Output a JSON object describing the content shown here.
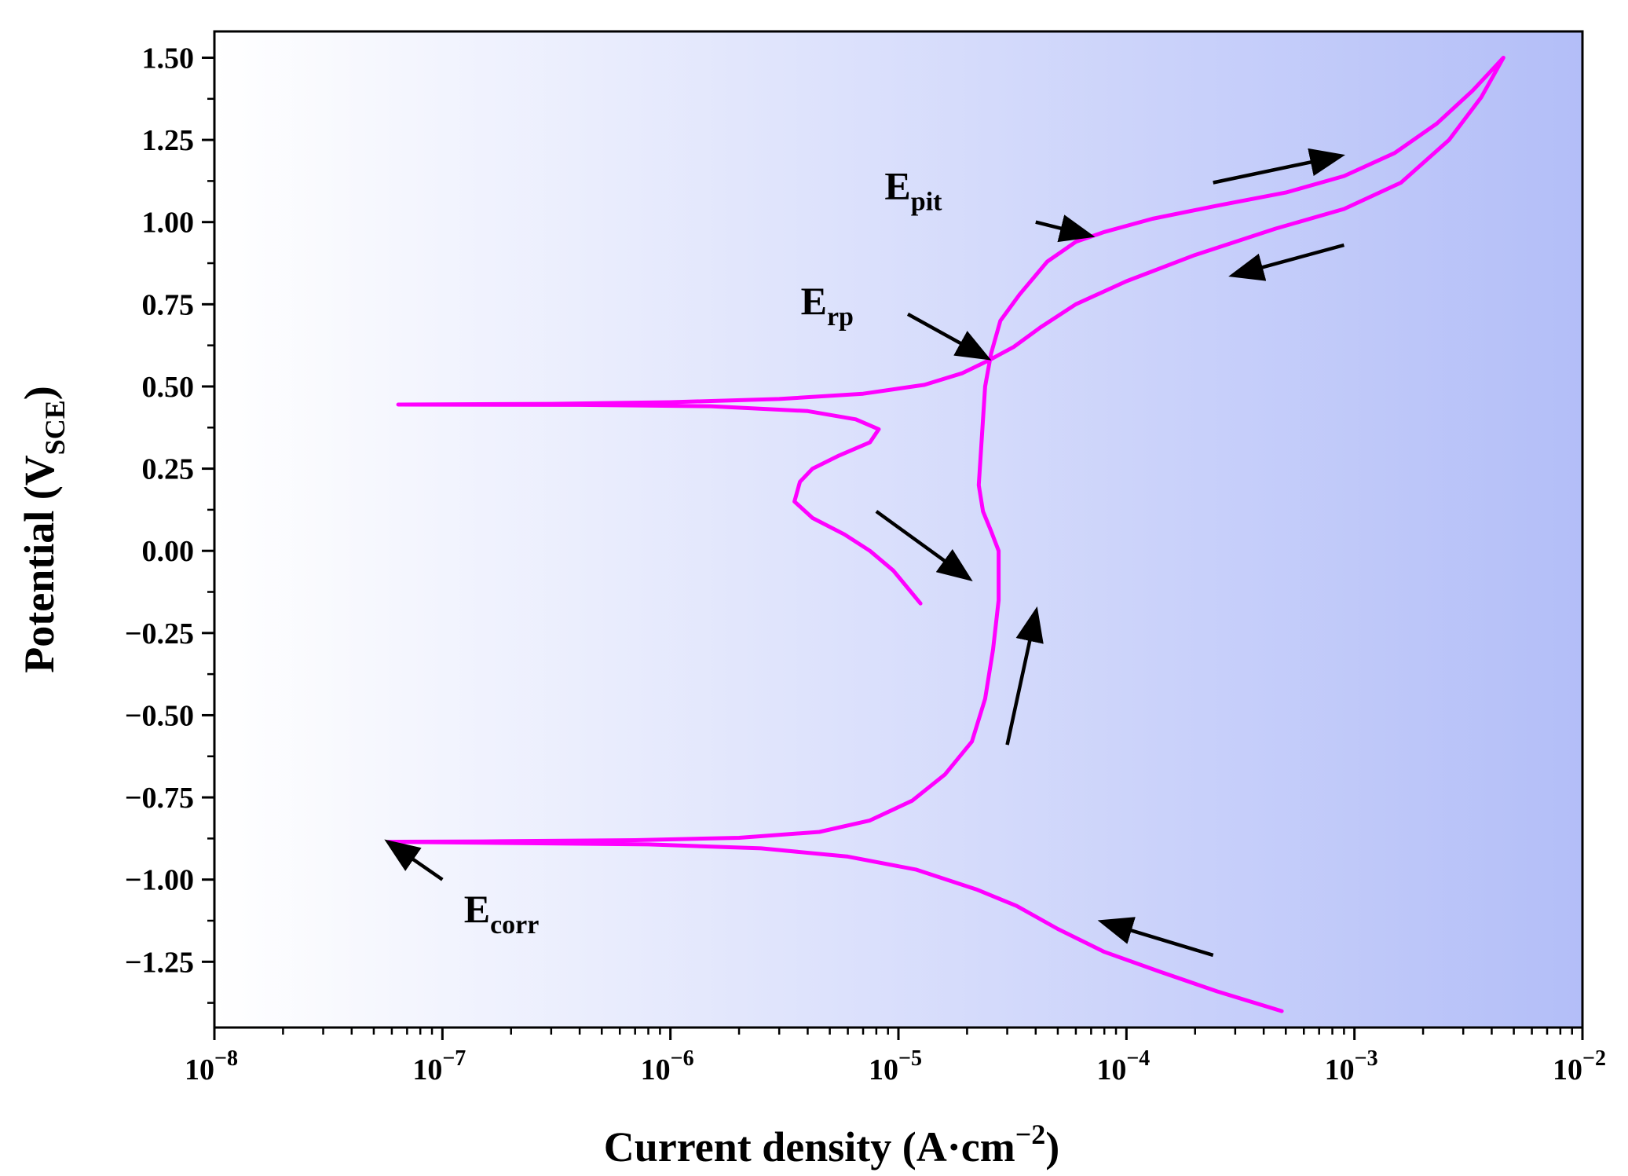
{
  "chart_data": {
    "type": "line",
    "title": "",
    "xlabel": "Current density (A·cm",
    "xlabel_sup": "−2",
    "xlabel_close": ")",
    "ylabel": "Potential (V",
    "ylabel_sub": "SCE",
    "ylabel_close": ")",
    "xscale": "log",
    "xlim": [
      1e-08,
      0.01
    ],
    "ylim": [
      -1.45,
      1.58
    ],
    "grid": false,
    "background": "gradient white to light blue (left to right)",
    "line_color": "#ff00ff",
    "arrow_color": "#000000",
    "x_ticks": [
      {
        "value": 1e-08,
        "base": "10",
        "exp": "−8"
      },
      {
        "value": 1e-07,
        "base": "10",
        "exp": "−7"
      },
      {
        "value": 1e-06,
        "base": "10",
        "exp": "−6"
      },
      {
        "value": 1e-05,
        "base": "10",
        "exp": "−5"
      },
      {
        "value": 0.0001,
        "base": "10",
        "exp": "−4"
      },
      {
        "value": 0.001,
        "base": "10",
        "exp": "−3"
      },
      {
        "value": 0.01,
        "base": "10",
        "exp": "−2"
      }
    ],
    "y_ticks": [
      {
        "value": 1.5,
        "label": "1.50"
      },
      {
        "value": 1.25,
        "label": "1.25"
      },
      {
        "value": 1.0,
        "label": "1.00"
      },
      {
        "value": 0.75,
        "label": "0.75"
      },
      {
        "value": 0.5,
        "label": "0.50"
      },
      {
        "value": 0.25,
        "label": "0.25"
      },
      {
        "value": 0.0,
        "label": "0.00"
      },
      {
        "value": -0.25,
        "label": "−0.25"
      },
      {
        "value": -0.5,
        "label": "−0.50"
      },
      {
        "value": -0.75,
        "label": "−0.75"
      },
      {
        "value": -1.0,
        "label": "−1.00"
      },
      {
        "value": -1.25,
        "label": "−1.25"
      }
    ],
    "series": [
      {
        "values": [
          [
            0.00048,
            -1.4
          ],
          [
            0.00025,
            -1.34
          ],
          [
            0.00014,
            -1.28
          ],
          [
            8e-05,
            -1.22
          ],
          [
            5e-05,
            -1.15
          ],
          [
            3.3e-05,
            -1.08
          ],
          [
            2.2e-05,
            -1.03
          ],
          [
            1.2e-05,
            -0.97
          ],
          [
            6e-06,
            -0.93
          ],
          [
            2.5e-06,
            -0.905
          ],
          [
            8e-07,
            -0.893
          ],
          [
            1.5e-07,
            -0.888
          ],
          [
            5.8e-08,
            -0.885
          ],
          [
            1.5e-07,
            -0.884
          ],
          [
            7e-07,
            -0.88
          ],
          [
            2e-06,
            -0.873
          ],
          [
            4.5e-06,
            -0.855
          ],
          [
            7.5e-06,
            -0.82
          ],
          [
            1.15e-05,
            -0.76
          ],
          [
            1.6e-05,
            -0.68
          ],
          [
            2.1e-05,
            -0.58
          ],
          [
            2.4e-05,
            -0.45
          ],
          [
            2.6e-05,
            -0.3
          ],
          [
            2.75e-05,
            -0.15
          ],
          [
            2.75e-05,
            0.0
          ],
          [
            2.55e-05,
            0.06
          ],
          [
            2.35e-05,
            0.12
          ],
          [
            2.25e-05,
            0.2
          ],
          [
            2.3e-05,
            0.3
          ],
          [
            2.35e-05,
            0.4
          ],
          [
            2.4e-05,
            0.5
          ],
          [
            2.55e-05,
            0.6
          ],
          [
            2.8e-05,
            0.7
          ],
          [
            3.4e-05,
            0.78
          ],
          [
            4.5e-05,
            0.88
          ],
          [
            6e-05,
            0.94
          ],
          [
            8e-05,
            0.97
          ],
          [
            0.00013,
            1.01
          ],
          [
            0.00025,
            1.05
          ],
          [
            0.0005,
            1.09
          ],
          [
            0.0009,
            1.14
          ],
          [
            0.0015,
            1.21
          ],
          [
            0.0023,
            1.3
          ],
          [
            0.0033,
            1.4
          ],
          [
            0.0045,
            1.5
          ],
          [
            0.0036,
            1.38
          ],
          [
            0.0026,
            1.25
          ],
          [
            0.0016,
            1.12
          ],
          [
            0.0009,
            1.04
          ],
          [
            0.00045,
            0.98
          ],
          [
            0.0002,
            0.9
          ],
          [
            0.0001,
            0.82
          ],
          [
            6e-05,
            0.75
          ],
          [
            4.2e-05,
            0.68
          ],
          [
            3.2e-05,
            0.62
          ],
          [
            2.5e-05,
            0.58
          ],
          [
            1.9e-05,
            0.54
          ],
          [
            1.3e-05,
            0.505
          ],
          [
            7e-06,
            0.478
          ],
          [
            3e-06,
            0.462
          ],
          [
            1e-06,
            0.452
          ],
          [
            3e-07,
            0.447
          ],
          [
            6.4e-08,
            0.445
          ],
          [
            4e-07,
            0.444
          ],
          [
            1.5e-06,
            0.44
          ],
          [
            4e-06,
            0.425
          ],
          [
            6.5e-06,
            0.4
          ],
          [
            8.2e-06,
            0.37
          ],
          [
            7.5e-06,
            0.33
          ],
          [
            5.5e-06,
            0.29
          ],
          [
            4.2e-06,
            0.25
          ],
          [
            3.7e-06,
            0.21
          ],
          [
            3.5e-06,
            0.15
          ],
          [
            4.2e-06,
            0.1
          ],
          [
            5.8e-06,
            0.05
          ],
          [
            7.5e-06,
            0.0
          ],
          [
            9.5e-06,
            -0.06
          ],
          [
            1.25e-05,
            -0.16
          ]
        ]
      }
    ],
    "annotations": [
      {
        "text": "E",
        "sub": "pit",
        "at": [
          8e-05,
          0.97
        ]
      },
      {
        "text": "E",
        "sub": "rp",
        "at": [
          2.5e-05,
          0.58
        ]
      },
      {
        "text": "E",
        "sub": "corr",
        "at": [
          5.8e-08,
          -0.885
        ]
      }
    ]
  }
}
